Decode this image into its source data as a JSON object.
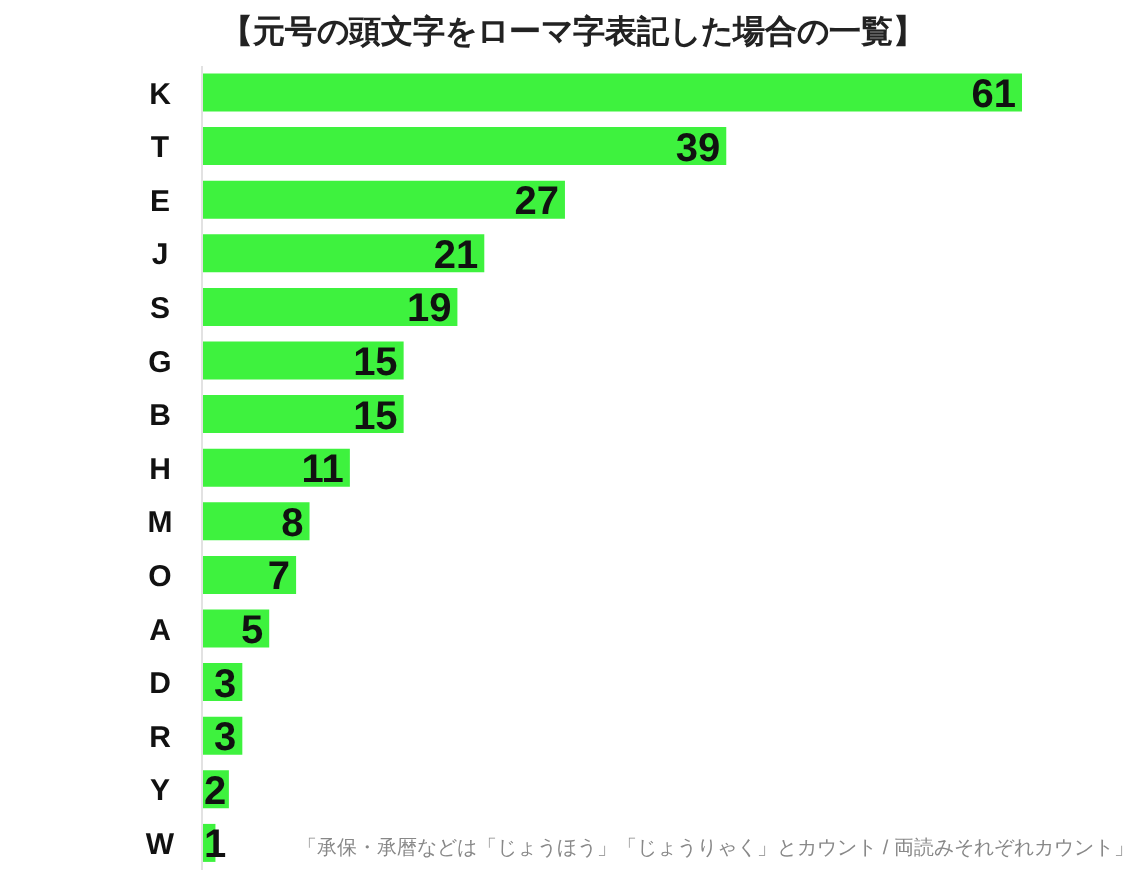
{
  "chart_data": {
    "type": "bar",
    "orientation": "horizontal",
    "title": "【元号の頭文字をローマ字表記した場合の一覧】",
    "categories": [
      "K",
      "T",
      "E",
      "J",
      "S",
      "G",
      "B",
      "H",
      "M",
      "O",
      "A",
      "D",
      "R",
      "Y",
      "W"
    ],
    "values": [
      61,
      39,
      27,
      21,
      19,
      15,
      15,
      11,
      8,
      7,
      5,
      3,
      3,
      2,
      1
    ],
    "color": "#3ef23e",
    "data_labels": true,
    "tick_labels": "y",
    "annotations": [
      "「承保・承暦などは「じょうほう」「じょうりゃく」とカウント / 両読みそれぞれカウント」"
    ]
  }
}
